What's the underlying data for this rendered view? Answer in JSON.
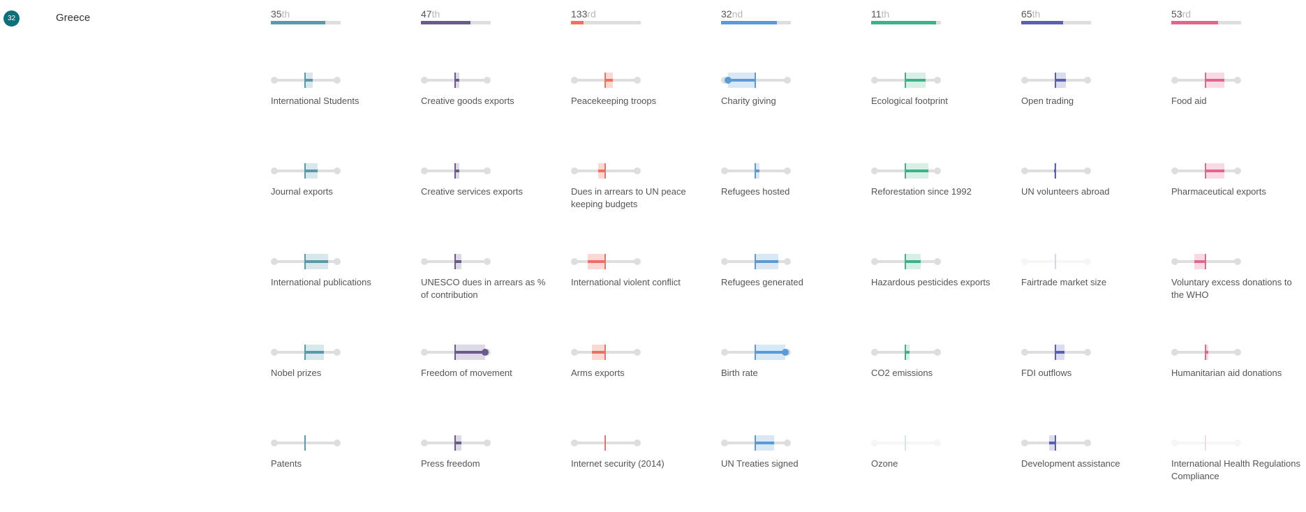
{
  "country": {
    "rank": "32",
    "name": "Greece"
  },
  "categories": [
    {
      "color": "#5a9aa8",
      "band": "#d7e7ec",
      "rank": "35",
      "suffix": "th",
      "fill": 0.78,
      "indicators": [
        {
          "label": "International Students",
          "lo": 0.48,
          "hi": 0.6
        },
        {
          "label": "Journal exports",
          "lo": 0.48,
          "hi": 0.68
        },
        {
          "label": "International publications",
          "lo": 0.48,
          "hi": 0.85
        },
        {
          "label": "Nobel prizes",
          "lo": 0.48,
          "hi": 0.78
        },
        {
          "label": "Patents",
          "lo": 0.48,
          "hi": 0.48
        }
      ]
    },
    {
      "color": "#6b5b8c",
      "band": "#ddd9e6",
      "rank": "47",
      "suffix": "th",
      "fill": 0.71,
      "indicators": [
        {
          "label": "Creative goods exports",
          "lo": 0.48,
          "hi": 0.55
        },
        {
          "label": "Creative services exports",
          "lo": 0.48,
          "hi": 0.55
        },
        {
          "label": "UNESCO dues in arrears as % of contribution",
          "lo": 0.48,
          "hi": 0.58
        },
        {
          "label": "Freedom of movement",
          "lo": 0.48,
          "hi": 0.96,
          "dot": "hi"
        },
        {
          "label": "Press freedom",
          "lo": 0.48,
          "hi": 0.58
        }
      ]
    },
    {
      "color": "#ee6f63",
      "band": "#fad8d3",
      "rank": "133",
      "suffix": "rd",
      "fill": 0.18,
      "indicators": [
        {
          "label": "Peacekeeping troops",
          "lo": 0.48,
          "hi": 0.6
        },
        {
          "label": "Dues in arrears to UN peace keeping budgets",
          "lo": 0.37,
          "hi": 0.48
        },
        {
          "label": "International violent conflict",
          "lo": 0.2,
          "hi": 0.48
        },
        {
          "label": "Arms exports",
          "lo": 0.27,
          "hi": 0.48
        },
        {
          "label": "Internet security (2014)",
          "lo": 0.48,
          "hi": 0.48
        }
      ]
    },
    {
      "color": "#5b9bd5",
      "band": "#d9e8f6",
      "rank": "32",
      "suffix": "nd",
      "fill": 0.8,
      "indicators": [
        {
          "label": "Charity giving",
          "lo": 0.04,
          "hi": 0.48,
          "dot": "lo"
        },
        {
          "label": "Refugees hosted",
          "lo": 0.48,
          "hi": 0.55
        },
        {
          "label": "Refugees generated",
          "lo": 0.48,
          "hi": 0.85
        },
        {
          "label": "Birth rate",
          "lo": 0.48,
          "hi": 0.96,
          "dot": "hi"
        },
        {
          "label": "UN Treaties signed",
          "lo": 0.48,
          "hi": 0.78
        }
      ]
    },
    {
      "color": "#3db28a",
      "band": "#d6f0e6",
      "rank": "11",
      "suffix": "th",
      "fill": 0.93,
      "indicators": [
        {
          "label": "Ecological footprint",
          "lo": 0.48,
          "hi": 0.8
        },
        {
          "label": "Reforestation since 1992",
          "lo": 0.48,
          "hi": 0.85
        },
        {
          "label": "Hazardous pesticides exports",
          "lo": 0.48,
          "hi": 0.72
        },
        {
          "label": "CO2 emissions",
          "lo": 0.48,
          "hi": 0.55
        },
        {
          "label": "Ozone",
          "lo": 0.48,
          "hi": 0.48,
          "faded": true
        }
      ]
    },
    {
      "color": "#5a5fb0",
      "band": "#dcdcef",
      "rank": "65",
      "suffix": "th",
      "fill": 0.6,
      "indicators": [
        {
          "label": "Open trading",
          "lo": 0.48,
          "hi": 0.65
        },
        {
          "label": "UN volunteers abroad",
          "lo": 0.46,
          "hi": 0.48
        },
        {
          "label": "Fairtrade market size",
          "lo": 0.48,
          "hi": 0.48,
          "faded": true
        },
        {
          "label": "FDI outflows",
          "lo": 0.48,
          "hi": 0.62
        },
        {
          "label": "Development assistance",
          "lo": 0.38,
          "hi": 0.48
        }
      ]
    },
    {
      "color": "#e0668b",
      "band": "#f9d9e3",
      "rank": "53",
      "suffix": "rd",
      "fill": 0.67,
      "indicators": [
        {
          "label": "Food aid",
          "lo": 0.48,
          "hi": 0.78
        },
        {
          "label": "Pharmaceutical exports",
          "lo": 0.48,
          "hi": 0.78
        },
        {
          "label": "Voluntary excess donations to the WHO",
          "lo": 0.3,
          "hi": 0.48
        },
        {
          "label": "Humanitarian aid donations",
          "lo": 0.48,
          "hi": 0.52
        },
        {
          "label": "International Health Regulations Compliance",
          "lo": 0.48,
          "hi": 0.48,
          "faded": true
        }
      ]
    }
  ]
}
